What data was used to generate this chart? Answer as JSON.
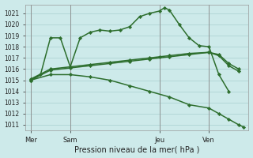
{
  "xlabel": "Pression niveau de la mer( hPa )",
  "bg_color": "#cdeaea",
  "grid_color": "#a8d0d0",
  "line_color": "#2d6e2d",
  "ylim_min": 1010.5,
  "ylim_max": 1021.8,
  "yticks": [
    1011,
    1012,
    1013,
    1014,
    1015,
    1016,
    1017,
    1018,
    1019,
    1020,
    1021
  ],
  "xtick_labels": [
    "Mer",
    "Sam",
    "Jeu",
    "Ven"
  ],
  "xtick_pos": [
    0,
    4,
    13,
    18
  ],
  "xlim_min": -0.5,
  "xlim_max": 22,
  "vlines_x": [
    0,
    4,
    13,
    18
  ],
  "series1_x": [
    0,
    1,
    2,
    3,
    4,
    5,
    6,
    7,
    8,
    9,
    10,
    11,
    12,
    13,
    13.5,
    14,
    15,
    16,
    17,
    18,
    19,
    20
  ],
  "series1_y": [
    1015.0,
    1015.5,
    1018.8,
    1018.8,
    1016.2,
    1018.8,
    1019.3,
    1019.5,
    1019.4,
    1019.5,
    1019.8,
    1020.7,
    1021.0,
    1021.2,
    1021.5,
    1021.3,
    1020.0,
    1018.8,
    1018.1,
    1018.0,
    1015.5,
    1014.0
  ],
  "series2_x": [
    0,
    2,
    4,
    6,
    8,
    10,
    12,
    13,
    14,
    16,
    18,
    19,
    20,
    21
  ],
  "series2_y": [
    1015.1,
    1016.0,
    1016.2,
    1016.4,
    1016.6,
    1016.8,
    1017.0,
    1017.1,
    1017.2,
    1017.4,
    1017.5,
    1017.3,
    1016.5,
    1016.0
  ],
  "series3_x": [
    0,
    2,
    4,
    6,
    8,
    10,
    12,
    14,
    16,
    18,
    19,
    20,
    21
  ],
  "series3_y": [
    1015.0,
    1015.9,
    1016.1,
    1016.3,
    1016.5,
    1016.7,
    1016.9,
    1017.1,
    1017.3,
    1017.5,
    1017.2,
    1016.3,
    1015.8
  ],
  "series4_x": [
    0,
    2,
    4,
    6,
    8,
    10,
    12,
    14,
    16,
    18,
    19,
    20,
    21,
    21.5
  ],
  "series4_y": [
    1015.0,
    1015.5,
    1015.5,
    1015.3,
    1015.0,
    1014.5,
    1014.0,
    1013.5,
    1012.8,
    1012.5,
    1012.0,
    1011.5,
    1011.0,
    1010.8
  ],
  "marker": "D",
  "markersize": 2.2,
  "linewidth": 1.1,
  "ytick_fontsize": 5.5,
  "xtick_fontsize": 6.0,
  "xlabel_fontsize": 7.0
}
